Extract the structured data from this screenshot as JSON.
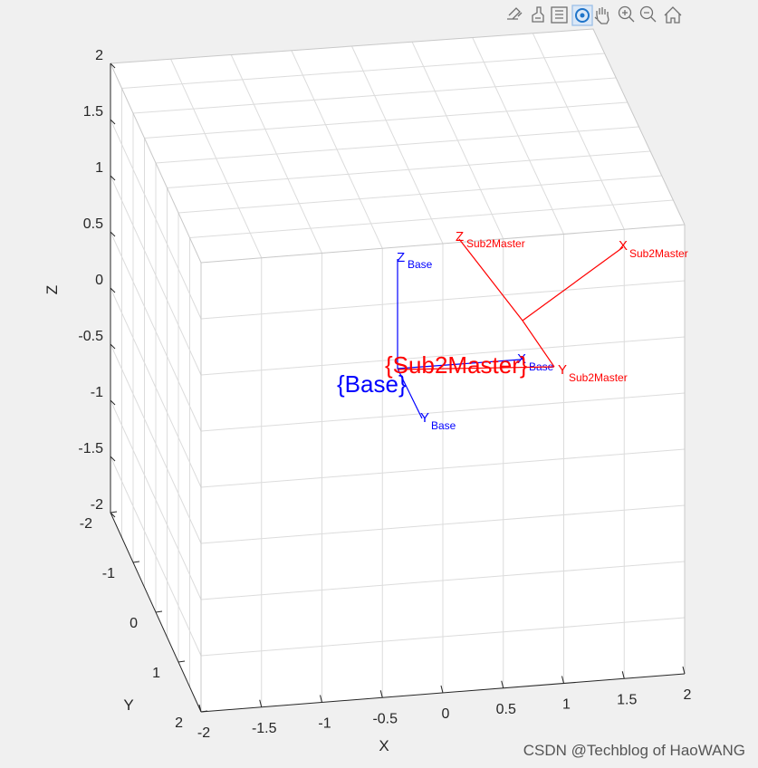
{
  "toolbar": {
    "icons": [
      "export-icon",
      "brush-icon",
      "datatip-icon",
      "rotate-3d-icon",
      "pan-hand-icon",
      "zoom-in-icon",
      "zoom-out-icon",
      "home-icon"
    ],
    "active": "rotate-3d-icon"
  },
  "chart_data": {
    "type": "3d-coordinate-frames",
    "title": "",
    "xlabel": "X",
    "ylabel": "Y",
    "zlabel": "Z",
    "xlim": [
      -2,
      2
    ],
    "ylim": [
      -2,
      2
    ],
    "zlim": [
      -2,
      2
    ],
    "x_ticks": [
      "-2",
      "-1.5",
      "-1",
      "-0.5",
      "0",
      "0.5",
      "1",
      "1.5",
      "2"
    ],
    "y_ticks": [
      "-2",
      "-1",
      "0",
      "1",
      "2"
    ],
    "z_ticks": [
      "2",
      "1.5",
      "1",
      "0.5",
      "0",
      "-0.5",
      "-1",
      "-1.5",
      "-2"
    ],
    "grid": true,
    "frames": [
      {
        "name": "{Base}",
        "color": "#0000ff",
        "axes": [
          {
            "axis": "X",
            "sub": "Base"
          },
          {
            "axis": "Y",
            "sub": "Base"
          },
          {
            "axis": "Z",
            "sub": "Base"
          }
        ]
      },
      {
        "name": "{Sub2Master}",
        "color": "#ff0000",
        "axes": [
          {
            "axis": "X",
            "sub": "Sub2Master"
          },
          {
            "axis": "Y",
            "sub": "Sub2Master"
          },
          {
            "axis": "Z",
            "sub": "Sub2Master"
          }
        ]
      }
    ]
  },
  "watermark": "CSDN @Techblog of HaoWANG"
}
